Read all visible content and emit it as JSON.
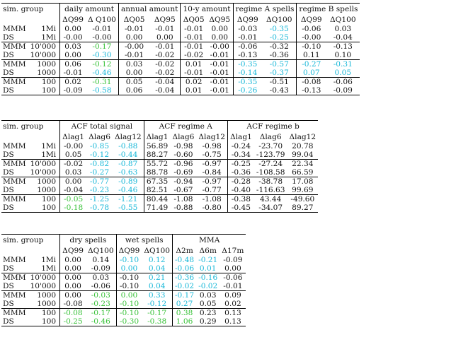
{
  "colors": {
    "cyan": "#1ab8d8",
    "green": "#39c239",
    "black": "#111111"
  },
  "table1": {
    "group_header": "sim. group",
    "spans": [
      "daily amount",
      "annual amount",
      "10-y amount",
      "regime A spells",
      "regime B spells"
    ],
    "subheaders": [
      "ΔQ99",
      "Δ Q100",
      "ΔQ05",
      "ΔQ95",
      "ΔQ05",
      "ΔQ95",
      "ΔQ99",
      "ΔQ100",
      "ΔQ99",
      "ΔQ100"
    ],
    "rows": [
      {
        "model": "MMM",
        "n": "1Mi",
        "vals": [
          "0.00",
          "-0.01",
          "-0.01",
          "-0.01",
          "-0.01",
          "0.00",
          "-0.03",
          "-0.35",
          "-0.06",
          "0.03"
        ],
        "c": [
          "",
          "",
          "",
          "",
          "",
          "",
          "",
          "cyan",
          "",
          ""
        ]
      },
      {
        "model": "DS",
        "n": "1Mi",
        "vals": [
          "-0.00",
          "-0.00",
          "0.00",
          "0.00",
          "-0.01",
          "0.00",
          "-0.01",
          "-0.25",
          "-0.00",
          "-0.04"
        ],
        "c": [
          "",
          "",
          "",
          "",
          "",
          "",
          "",
          "cyan",
          "",
          ""
        ]
      },
      {
        "model": "MMM",
        "n": "10'000",
        "vals": [
          "0.03",
          "-0.17",
          "-0.00",
          "-0.01",
          "-0.01",
          "-0.00",
          "-0.06",
          "-0.32",
          "-0.10",
          "-0.13"
        ],
        "c": [
          "",
          "green",
          "",
          "",
          "",
          "",
          "",
          "",
          "",
          ""
        ]
      },
      {
        "model": "DS",
        "n": "10'000",
        "vals": [
          "0.00",
          "-0.30",
          "-0.01",
          "-0.02",
          "-0.02",
          "-0.01",
          "-0.13",
          "-0.36",
          "0.11",
          "0.10"
        ],
        "c": [
          "",
          "cyan",
          "",
          "",
          "",
          "",
          "",
          "",
          "",
          ""
        ]
      },
      {
        "model": "MMM",
        "n": "1000",
        "vals": [
          "0.06",
          "-0.12",
          "0.03",
          "-0.02",
          "0.01",
          "-0.01",
          "-0.35",
          "-0.57",
          "-0.27",
          "-0.31"
        ],
        "c": [
          "",
          "green",
          "",
          "",
          "",
          "",
          "cyan",
          "cyan",
          "cyan",
          "cyan"
        ]
      },
      {
        "model": "DS",
        "n": "1000",
        "vals": [
          "-0.01",
          "-0.46",
          "0.00",
          "-0.02",
          "-0.01",
          "-0.01",
          "-0.14",
          "-0.37",
          "0.07",
          "0.05"
        ],
        "c": [
          "",
          "cyan",
          "",
          "",
          "",
          "",
          "cyan",
          "cyan",
          "cyan",
          "cyan"
        ]
      },
      {
        "model": "MMM",
        "n": "100",
        "vals": [
          "0.02",
          "-0.31",
          "0.05",
          "-0.04",
          "0.02",
          "-0.01",
          "-0.35",
          "-0.51",
          "-0.08",
          "-0.06"
        ],
        "c": [
          "",
          "green",
          "",
          "",
          "",
          "",
          "cyan",
          "",
          "",
          ""
        ]
      },
      {
        "model": "DS",
        "n": "100",
        "vals": [
          "-0.09",
          "-0.58",
          "0.06",
          "-0.04",
          "0.01",
          "-0.01",
          "-0.26",
          "-0.43",
          "-0.13",
          "-0.09"
        ],
        "c": [
          "",
          "cyan",
          "",
          "",
          "",
          "",
          "cyan",
          "",
          "",
          ""
        ]
      }
    ]
  },
  "table2": {
    "group_header": "sim. group",
    "spans": [
      "ACF total signal",
      "ACF regime A",
      "ACF regime b"
    ],
    "subheaders": [
      "Δlag1",
      "Δlag6",
      "Δlag12",
      "Δlag1",
      "Δlag6",
      "Δlag12",
      "Δlag1",
      "Δlag6",
      "Δlag12"
    ],
    "rows": [
      {
        "model": "MMM",
        "n": "1Mi",
        "vals": [
          "-0.00",
          "-0.85",
          "-0.88",
          "56.89",
          "-0.98",
          "-0.98",
          "-0.24",
          "-23.70",
          "20.78"
        ],
        "c": [
          "",
          "cyan",
          "cyan",
          "",
          "",
          "",
          "",
          "",
          ""
        ]
      },
      {
        "model": "DS",
        "n": "1Mi",
        "vals": [
          "0.05",
          "-0.12",
          "-0.44",
          "88.27",
          "-0.60",
          "-0.75",
          "-0.34",
          "-123.79",
          "99.04"
        ],
        "c": [
          "",
          "cyan",
          "cyan",
          "",
          "",
          "",
          "",
          "",
          ""
        ]
      },
      {
        "model": "MMM",
        "n": "10'000",
        "vals": [
          "-0.02",
          "-0.82",
          "-0.87",
          "55.72",
          "-0.96",
          "-0.97",
          "-0.25",
          "-27.24",
          "22.34"
        ],
        "c": [
          "",
          "cyan",
          "cyan",
          "",
          "",
          "",
          "",
          "",
          ""
        ]
      },
      {
        "model": "DS",
        "n": "10'000",
        "vals": [
          "0.03",
          "-0.27",
          "-0.63",
          "88.78",
          "-0.69",
          "-0.84",
          "-0.36",
          "-108.58",
          "66.59"
        ],
        "c": [
          "",
          "cyan",
          "cyan",
          "",
          "",
          "",
          "",
          "",
          ""
        ]
      },
      {
        "model": "MMM",
        "n": "1000",
        "vals": [
          "0.00",
          "-0.77",
          "-0.89",
          "67.35",
          "-0.94",
          "-0.97",
          "-0.28",
          "-38.78",
          "17.08"
        ],
        "c": [
          "",
          "cyan",
          "cyan",
          "",
          "",
          "",
          "",
          "",
          ""
        ]
      },
      {
        "model": "DS",
        "n": "1000",
        "vals": [
          "-0.04",
          "-0.23",
          "-0.46",
          "82.51",
          "-0.67",
          "-0.77",
          "-0.40",
          "-116.63",
          "99.69"
        ],
        "c": [
          "",
          "cyan",
          "cyan",
          "",
          "",
          "",
          "",
          "",
          ""
        ]
      },
      {
        "model": "MMM",
        "n": "100",
        "vals": [
          "-0.05",
          "-1.25",
          "-1.21",
          "80.44",
          "-1.08",
          "-1.08",
          "-0.38",
          "43.44",
          "-49.60"
        ],
        "c": [
          "green",
          "cyan",
          "cyan",
          "",
          "",
          "",
          "",
          "",
          ""
        ]
      },
      {
        "model": "DS",
        "n": "100",
        "vals": [
          "-0.18",
          "-0.78",
          "-0.55",
          "71.49",
          "-0.88",
          "-0.80",
          "-0.45",
          "-34.07",
          "89.27"
        ],
        "c": [
          "green",
          "cyan",
          "cyan",
          "",
          "",
          "",
          "",
          "",
          ""
        ]
      }
    ]
  },
  "table3": {
    "group_header": "sim. group",
    "spans": [
      "dry spells",
      "wet spells",
      "MMA"
    ],
    "subheaders": [
      "ΔQ99",
      "ΔQ100",
      "ΔQ99",
      "ΔQ100",
      "Δ2m",
      "Δ6m",
      "Δ17m"
    ],
    "rows": [
      {
        "model": "MMM",
        "n": "1Mi",
        "vals": [
          "0.00",
          "0.14",
          "-0.10",
          "0.12",
          "-0.48",
          "-0.21",
          "-0.09"
        ],
        "c": [
          "",
          "",
          "cyan",
          "cyan",
          "cyan",
          "cyan",
          ""
        ]
      },
      {
        "model": "DS",
        "n": "1Mi",
        "vals": [
          "0.00",
          "-0.09",
          "0.00",
          "0.04",
          "-0.06",
          "0.01",
          "0.00"
        ],
        "c": [
          "",
          "",
          "cyan",
          "cyan",
          "cyan",
          "cyan",
          ""
        ]
      },
      {
        "model": "MMM",
        "n": "10'000",
        "vals": [
          "0.00",
          "0.03",
          "-0.10",
          "0.21",
          "-0.36",
          "-0.16",
          "-0.06"
        ],
        "c": [
          "",
          "",
          "",
          "cyan",
          "cyan",
          "cyan",
          ""
        ]
      },
      {
        "model": "DS",
        "n": "10'000",
        "vals": [
          "0.00",
          "-0.06",
          "-0.10",
          "0.04",
          "-0.02",
          "-0.02",
          "-0.01"
        ],
        "c": [
          "",
          "",
          "",
          "cyan",
          "cyan",
          "cyan",
          ""
        ]
      },
      {
        "model": "MMM",
        "n": "1000",
        "vals": [
          "0.00",
          "-0.03",
          "0.00",
          "0.33",
          "-0.17",
          "0.03",
          "0.09"
        ],
        "c": [
          "",
          "green",
          "green",
          "cyan",
          "cyan",
          "",
          ""
        ]
      },
      {
        "model": "DS",
        "n": "1000",
        "vals": [
          "-0.08",
          "-0.23",
          "-0.10",
          "-0.12",
          "0.27",
          "0.05",
          "0.02"
        ],
        "c": [
          "",
          "green",
          "green",
          "cyan",
          "cyan",
          "",
          ""
        ]
      },
      {
        "model": "MMM",
        "n": "100",
        "vals": [
          "-0.08",
          "-0.17",
          "-0.10",
          "-0.17",
          "0.38",
          "0.23",
          "0.13"
        ],
        "c": [
          "green",
          "green",
          "green",
          "green",
          "green",
          "",
          ""
        ]
      },
      {
        "model": "DS",
        "n": "100",
        "vals": [
          "-0.25",
          "-0.46",
          "-0.30",
          "-0.38",
          "1.06",
          "0.29",
          "0.13"
        ],
        "c": [
          "green",
          "green",
          "green",
          "green",
          "green",
          "",
          ""
        ]
      }
    ]
  }
}
